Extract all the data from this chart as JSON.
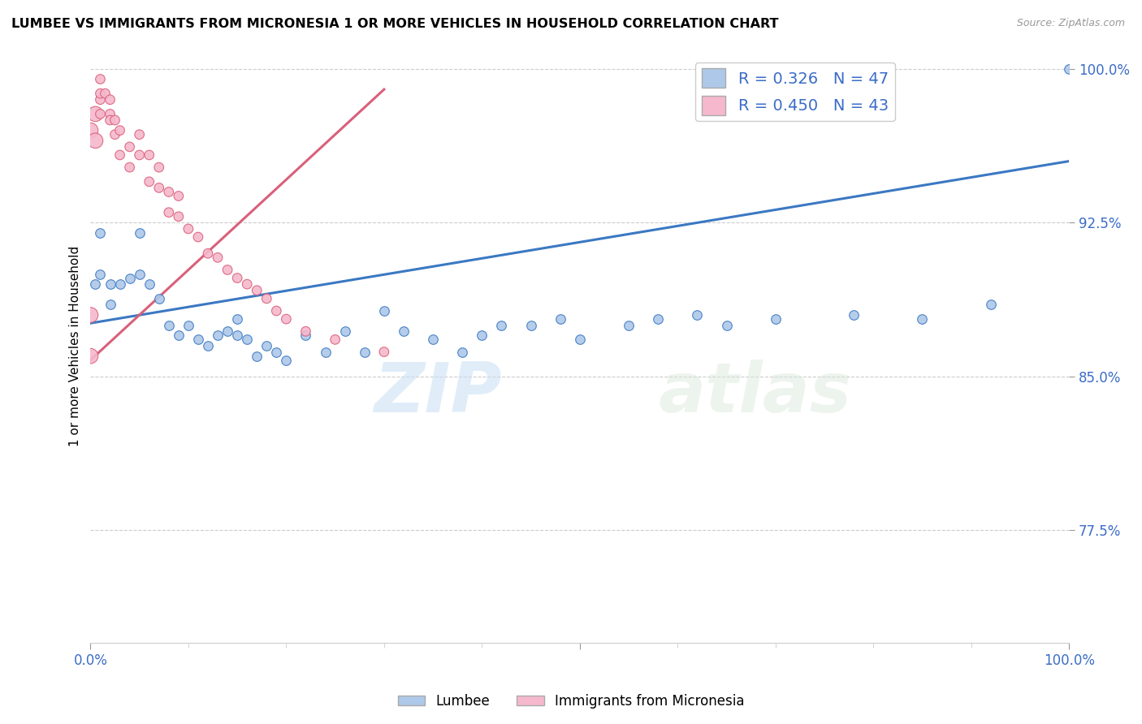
{
  "title": "LUMBEE VS IMMIGRANTS FROM MICRONESIA 1 OR MORE VEHICLES IN HOUSEHOLD CORRELATION CHART",
  "source": "Source: ZipAtlas.com",
  "ylabel": "1 or more Vehicles in Household",
  "xlim": [
    0.0,
    1.0
  ],
  "ylim": [
    0.72,
    1.01
  ],
  "yticks": [
    0.775,
    0.85,
    0.925,
    1.0
  ],
  "ytick_labels": [
    "77.5%",
    "85.0%",
    "92.5%",
    "100.0%"
  ],
  "legend_labels": [
    "Lumbee",
    "Immigrants from Micronesia"
  ],
  "R_lumbee": 0.326,
  "N_lumbee": 47,
  "R_micronesia": 0.45,
  "N_micronesia": 43,
  "color_lumbee": "#adc8e8",
  "color_micronesia": "#f5b8cc",
  "color_line_lumbee": "#3b78c3",
  "color_line_micronesia": "#d9607a",
  "color_text_blue": "#3b6cc7",
  "watermark_zip": "ZIP",
  "watermark_atlas": "atlas",
  "lumbee_x": [
    0.005,
    0.01,
    0.01,
    0.02,
    0.02,
    0.03,
    0.04,
    0.05,
    0.05,
    0.06,
    0.07,
    0.08,
    0.09,
    0.1,
    0.11,
    0.12,
    0.13,
    0.14,
    0.15,
    0.15,
    0.16,
    0.17,
    0.18,
    0.19,
    0.2,
    0.22,
    0.24,
    0.26,
    0.28,
    0.3,
    0.32,
    0.35,
    0.38,
    0.4,
    0.42,
    0.45,
    0.48,
    0.5,
    0.55,
    0.58,
    0.62,
    0.65,
    0.7,
    0.78,
    0.85,
    0.92,
    1.0
  ],
  "lumbee_y": [
    0.895,
    0.9,
    0.92,
    0.885,
    0.895,
    0.895,
    0.898,
    0.9,
    0.92,
    0.895,
    0.888,
    0.875,
    0.87,
    0.875,
    0.868,
    0.865,
    0.87,
    0.872,
    0.87,
    0.878,
    0.868,
    0.86,
    0.865,
    0.862,
    0.858,
    0.87,
    0.862,
    0.872,
    0.862,
    0.882,
    0.872,
    0.868,
    0.862,
    0.87,
    0.875,
    0.875,
    0.878,
    0.868,
    0.875,
    0.878,
    0.88,
    0.875,
    0.878,
    0.88,
    0.878,
    0.885,
    1.0
  ],
  "lumbee_size": [
    70,
    70,
    70,
    70,
    70,
    70,
    70,
    70,
    70,
    70,
    70,
    70,
    70,
    70,
    70,
    70,
    70,
    70,
    70,
    70,
    70,
    70,
    70,
    70,
    70,
    70,
    70,
    70,
    70,
    70,
    70,
    70,
    70,
    70,
    70,
    70,
    70,
    70,
    70,
    70,
    70,
    70,
    70,
    70,
    70,
    70,
    70
  ],
  "micronesia_x": [
    0.0,
    0.0,
    0.0,
    0.005,
    0.005,
    0.01,
    0.01,
    0.01,
    0.01,
    0.015,
    0.02,
    0.02,
    0.02,
    0.025,
    0.025,
    0.03,
    0.03,
    0.04,
    0.04,
    0.05,
    0.05,
    0.06,
    0.06,
    0.07,
    0.07,
    0.08,
    0.08,
    0.09,
    0.09,
    0.1,
    0.11,
    0.12,
    0.13,
    0.14,
    0.15,
    0.16,
    0.17,
    0.18,
    0.19,
    0.2,
    0.22,
    0.25,
    0.3
  ],
  "micronesia_y": [
    0.86,
    0.88,
    0.97,
    0.965,
    0.978,
    0.978,
    0.985,
    0.988,
    0.995,
    0.988,
    0.985,
    0.978,
    0.975,
    0.968,
    0.975,
    0.958,
    0.97,
    0.952,
    0.962,
    0.958,
    0.968,
    0.945,
    0.958,
    0.942,
    0.952,
    0.93,
    0.94,
    0.928,
    0.938,
    0.922,
    0.918,
    0.91,
    0.908,
    0.902,
    0.898,
    0.895,
    0.892,
    0.888,
    0.882,
    0.878,
    0.872,
    0.868,
    0.862
  ],
  "micronesia_size_large": 180,
  "micronesia_size_small": 70,
  "line_lumbee_x0": 0.0,
  "line_lumbee_x1": 1.0,
  "line_micronesia_x0": 0.0,
  "line_micronesia_x1": 0.3
}
